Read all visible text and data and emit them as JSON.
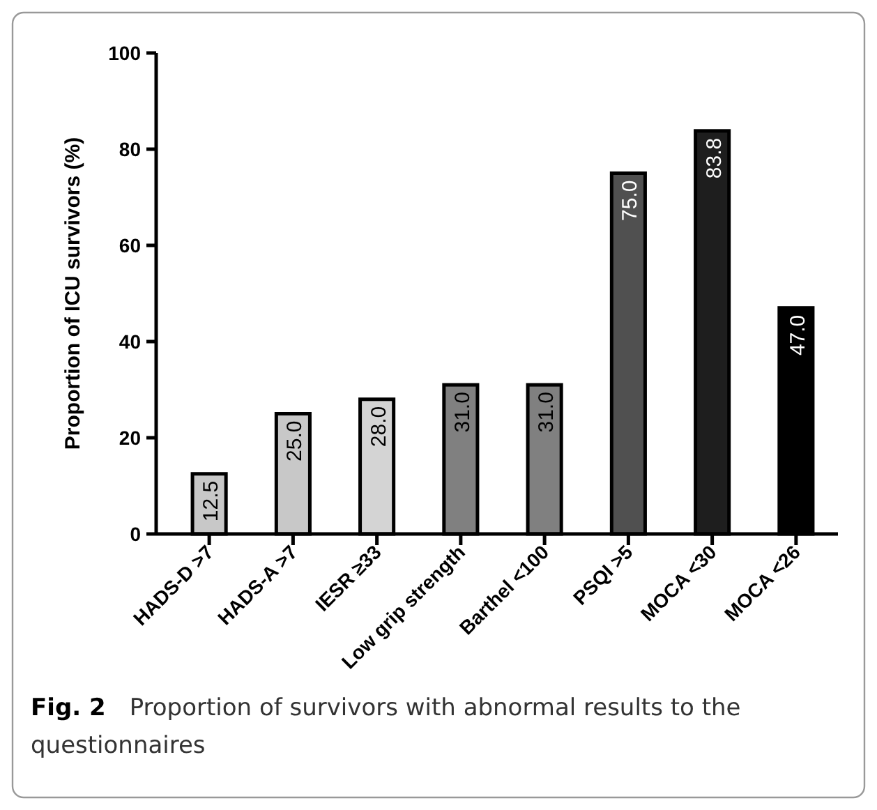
{
  "chart_data": {
    "type": "bar",
    "ylabel": "Proportion of ICU survivors (%)",
    "categories": [
      "HADS-D >7",
      "HADS-A >7",
      "IESR ≥33",
      "Low grip strength",
      "Barthel <100",
      "PSQI >5",
      "MOCA <30",
      "MOCA <26"
    ],
    "values": [
      12.5,
      25.0,
      28.0,
      31.0,
      31.0,
      75.0,
      83.8,
      47.0
    ],
    "colors": [
      "#c8c8c8",
      "#c8c8c8",
      "#d4d4d4",
      "#808080",
      "#808080",
      "#505050",
      "#1e1e1e",
      "#000000"
    ],
    "value_labels": [
      "12.5",
      "25.0",
      "28.0",
      "31.0",
      "31.0",
      "75.0",
      "83.8",
      "47.0"
    ],
    "ylim": [
      0,
      100
    ],
    "yticks": [
      0,
      20,
      40,
      60,
      80,
      100
    ],
    "annotations": [
      "Fig. 2",
      "Proportion of survivors with abnormal results to the questionnaires"
    ]
  }
}
